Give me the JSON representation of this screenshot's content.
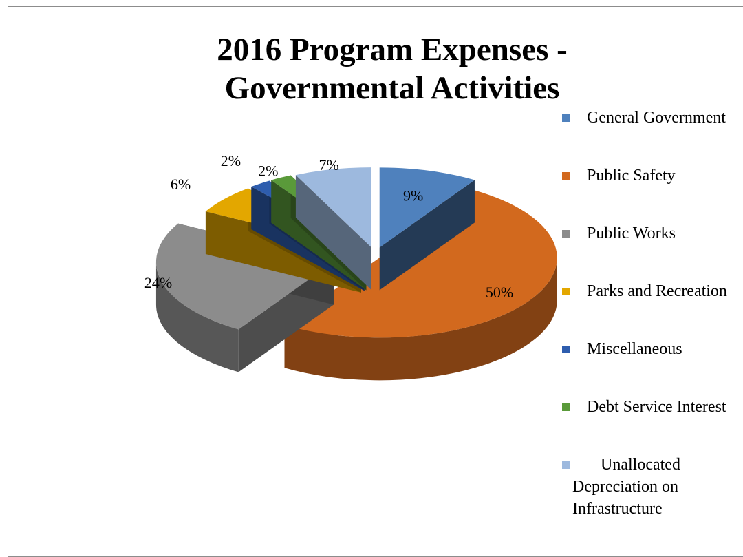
{
  "chart_data": {
    "type": "pie",
    "title_lines": [
      "2016 Program Expenses -",
      "Governmental Activities"
    ],
    "categories": [
      "General Government",
      "Public Safety",
      "Public Works",
      "Parks and Recreation",
      "Miscellaneous",
      "Debt Service Interest",
      "Unallocated Depreciation on Infrastructure"
    ],
    "values": [
      9,
      50,
      24,
      6,
      2,
      2,
      7
    ],
    "data_labels": [
      "9%",
      "50%",
      "24%",
      "6%",
      "2%",
      "2%",
      "7%"
    ],
    "colors": [
      "#4F81BD",
      "#D2691E",
      "#8C8C8C",
      "#E3A700",
      "#2E5DAE",
      "#5A9A3A",
      "#9DB9DE"
    ],
    "legend_position": "right",
    "style": "3d-exploded"
  }
}
